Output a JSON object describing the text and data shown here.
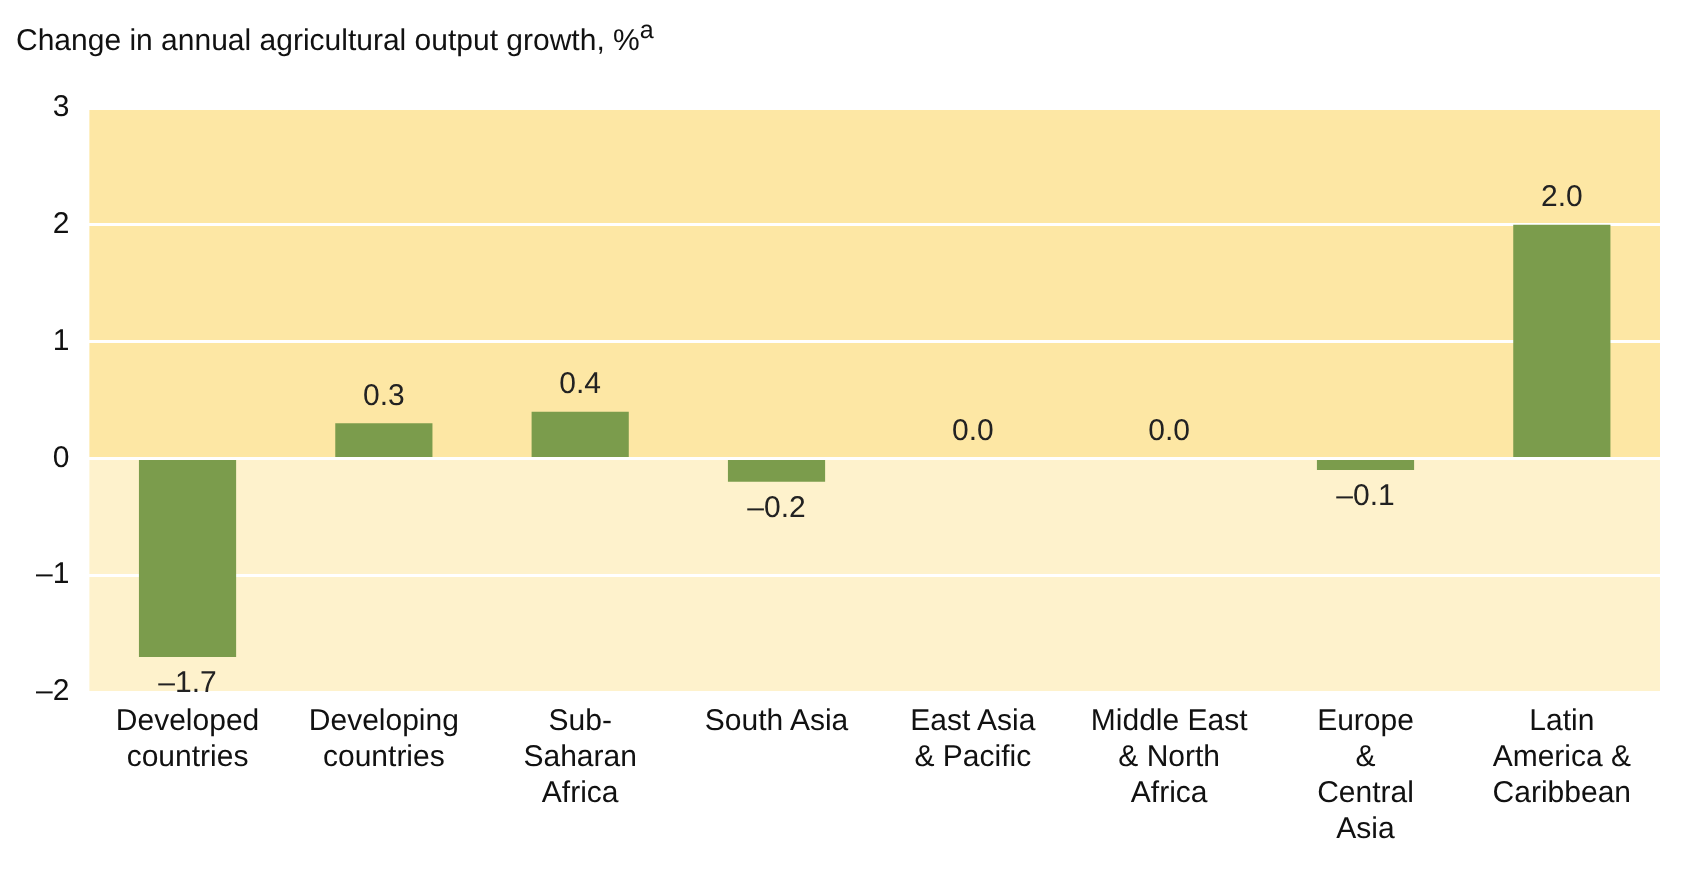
{
  "chart_data": {
    "type": "bar",
    "ylabel": "Change in annual agricultural output growth, %$^{a}$",
    "categories": [
      "Developed\ncountries",
      "Developing\ncountries",
      "Sub-\nSaharan\nAfrica",
      "South Asia",
      "East Asia\n& Pacific",
      "Middle East\n& North\nAfrica",
      "Europe\n&\nCentral\nAsia",
      "Latin\nAmerica &\nCaribbean"
    ],
    "values": [
      -1.7,
      0.3,
      0.4,
      -0.2,
      0.0,
      0.0,
      -0.1,
      2.0
    ],
    "value_labels": [
      "–1.7",
      "0.3",
      "0.4",
      "–0.2",
      "0.0",
      "0.0",
      "–0.1",
      "2.0"
    ],
    "color": "#7b9c4c",
    "ylim": [
      -2,
      3
    ],
    "yticks": [
      {
        "value": -2,
        "label": "–2"
      },
      {
        "value": -1,
        "label": "–1"
      },
      0,
      1,
      2,
      3
    ],
    "bands": [
      {
        "axis": "y",
        "from": 0,
        "to": 3,
        "color": "#fde7a4"
      },
      {
        "axis": "y",
        "from": -2,
        "to": 0,
        "color": "#fef2cc"
      }
    ],
    "grid": "y"
  }
}
